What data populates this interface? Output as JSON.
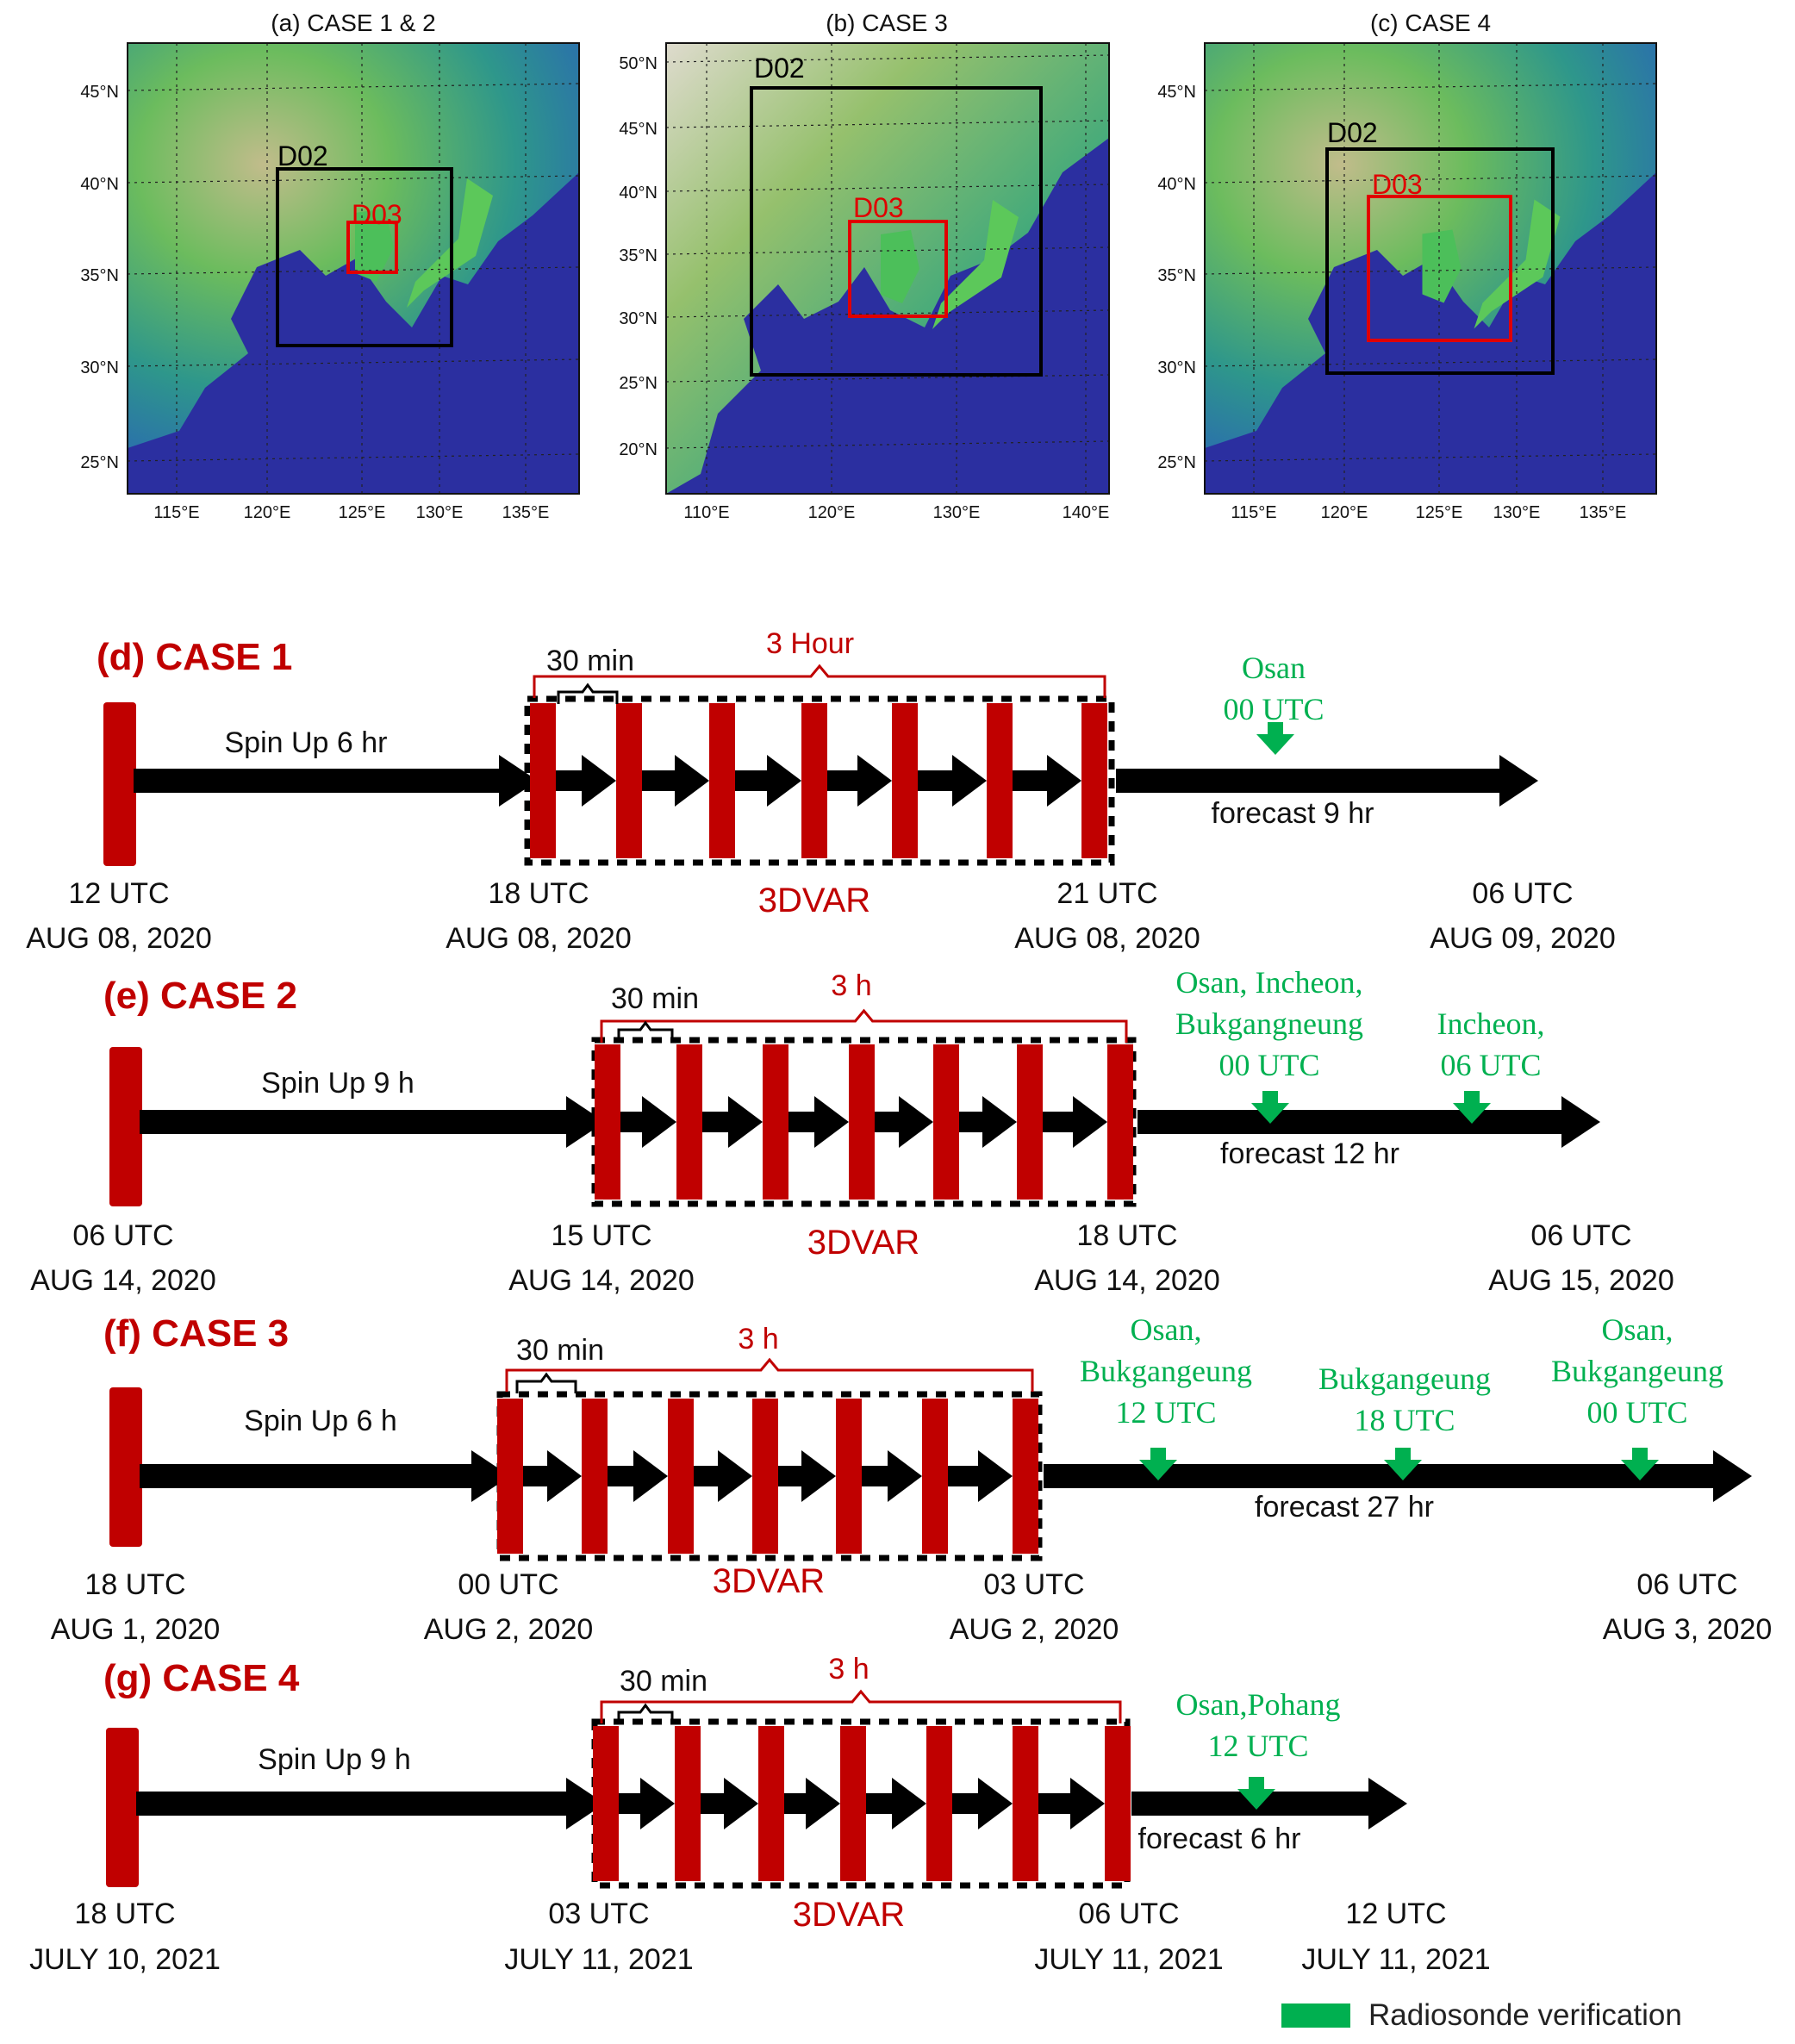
{
  "colors": {
    "red": "#c00000",
    "green": "#00b050",
    "black": "#000000",
    "ocean": "#2b2fa0"
  },
  "maps": [
    {
      "title": "(a) CASE 1 & 2",
      "lat_labels": [
        "45°N",
        "40°N",
        "35°N",
        "30°N",
        "25°N"
      ],
      "lon_labels": [
        "115°E",
        "120°E",
        "125°E",
        "130°E",
        "135°E"
      ],
      "domains": [
        {
          "name": "D02",
          "color": "black"
        },
        {
          "name": "D03",
          "color": "red"
        }
      ]
    },
    {
      "title": "(b) CASE 3",
      "lat_labels": [
        "50°N",
        "45°N",
        "40°N",
        "35°N",
        "30°N",
        "25°N",
        "20°N"
      ],
      "lon_labels": [
        "110°E",
        "120°E",
        "130°E",
        "140°E"
      ],
      "domains": [
        {
          "name": "D02",
          "color": "black"
        },
        {
          "name": "D03",
          "color": "red"
        }
      ]
    },
    {
      "title": "(c) CASE 4",
      "lat_labels": [
        "45°N",
        "40°N",
        "35°N",
        "30°N",
        "25°N"
      ],
      "lon_labels": [
        "115°E",
        "120°E",
        "125°E",
        "130°E",
        "135°E"
      ],
      "domains": [
        {
          "name": "D02",
          "color": "black"
        },
        {
          "name": "D03",
          "color": "red"
        }
      ]
    }
  ],
  "timelines": [
    {
      "title": "(d) CASE 1",
      "spinup": "Spin Up 6 hr",
      "interval": "30 min",
      "window": "3 Hour",
      "method": "3DVAR",
      "forecast": "forecast 9 hr",
      "times": [
        [
          "12 UTC",
          "AUG 08, 2020"
        ],
        [
          "18 UTC",
          "AUG 08, 2020"
        ],
        [
          "21 UTC",
          "AUG 08, 2020"
        ],
        [
          "06 UTC",
          "AUG 09, 2020"
        ]
      ],
      "verifications": [
        [
          "Osan",
          "00 UTC"
        ]
      ]
    },
    {
      "title": "(e) CASE 2",
      "spinup": "Spin Up 9 h",
      "interval": "30 min",
      "window": "3 h",
      "method": "3DVAR",
      "forecast": "forecast 12 hr",
      "times": [
        [
          "06 UTC",
          "AUG 14, 2020"
        ],
        [
          "15 UTC",
          "AUG 14, 2020"
        ],
        [
          "18 UTC",
          "AUG 14, 2020"
        ],
        [
          "06 UTC",
          "AUG 15, 2020"
        ]
      ],
      "verifications": [
        [
          "Osan, Incheon,",
          "Bukgangneung",
          "00 UTC"
        ],
        [
          "Incheon,",
          "06 UTC"
        ]
      ]
    },
    {
      "title": "(f) CASE 3",
      "spinup": "Spin Up 6 h",
      "interval": "30 min",
      "window": "3 h",
      "method": "3DVAR",
      "forecast": "forecast 27 hr",
      "times": [
        [
          "18 UTC",
          "AUG 1, 2020"
        ],
        [
          "00 UTC",
          "AUG 2, 2020"
        ],
        [
          "03 UTC",
          "AUG 2, 2020"
        ],
        [
          "06 UTC",
          "AUG 3, 2020"
        ]
      ],
      "verifications": [
        [
          "Osan,",
          "Bukgangeung",
          "12 UTC"
        ],
        [
          "Bukgangeung",
          "18 UTC"
        ],
        [
          "Osan,",
          "Bukgangeung",
          "00 UTC"
        ]
      ]
    },
    {
      "title": "(g) CASE 4",
      "spinup": "Spin Up 9 h",
      "interval": "30 min",
      "window": "3 h",
      "method": "3DVAR",
      "forecast": "forecast 6 hr",
      "times": [
        [
          "18 UTC",
          "JULY 10, 2021"
        ],
        [
          "03 UTC",
          "JULY 11, 2021"
        ],
        [
          "06 UTC",
          "JULY 11, 2021"
        ],
        [
          "12 UTC",
          "JULY 11, 2021"
        ]
      ],
      "verifications": [
        [
          "Osan,Pohang",
          "12 UTC"
        ]
      ]
    }
  ],
  "legend": {
    "label": "Radiosonde verification"
  }
}
